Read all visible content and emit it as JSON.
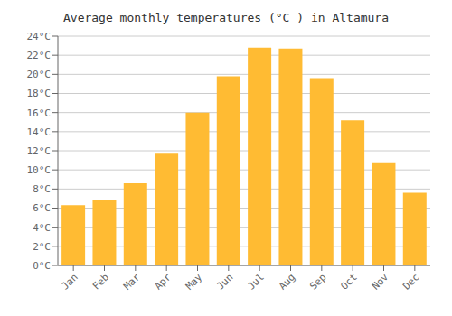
{
  "chart_data": {
    "type": "bar",
    "title": "Average monthly temperatures (°C ) in Altamura",
    "categories": [
      "Jan",
      "Feb",
      "Mar",
      "Apr",
      "May",
      "Jun",
      "Jul",
      "Aug",
      "Sep",
      "Oct",
      "Nov",
      "Dec"
    ],
    "values": [
      6.3,
      6.8,
      8.6,
      11.7,
      16.0,
      19.8,
      22.8,
      22.7,
      19.6,
      15.2,
      10.8,
      7.6
    ],
    "color": "#FFBB33",
    "ylim": [
      0,
      24
    ],
    "yticks": [
      {
        "value": 0,
        "label": "0°C"
      },
      {
        "value": 2,
        "label": "2°C"
      },
      {
        "value": 4,
        "label": "4°C"
      },
      {
        "value": 6,
        "label": "6°C"
      },
      {
        "value": 8,
        "label": "8°C"
      },
      {
        "value": 10,
        "label": "10°C"
      },
      {
        "value": 12,
        "label": "12°C"
      },
      {
        "value": 14,
        "label": "14°C"
      },
      {
        "value": 16,
        "label": "16°C"
      },
      {
        "value": 18,
        "label": "18°C"
      },
      {
        "value": 20,
        "label": "20°C"
      },
      {
        "value": 22,
        "label": "22°C"
      },
      {
        "value": 24,
        "label": "24°C"
      }
    ],
    "grid": true
  }
}
